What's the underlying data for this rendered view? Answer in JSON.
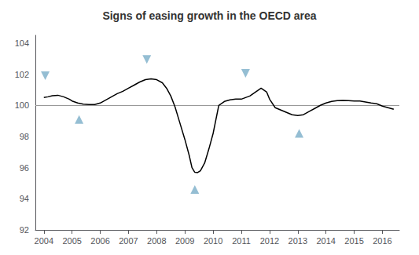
{
  "chart_data": {
    "type": "line",
    "title": "Signs of easing growth in the OECD area",
    "xlim": [
      2003.7,
      2016.6
    ],
    "ylim": [
      92,
      104.5
    ],
    "xticks": [
      2004,
      2005,
      2006,
      2007,
      2008,
      2009,
      2010,
      2011,
      2012,
      2013,
      2014,
      2015,
      2016
    ],
    "yticks": [
      92,
      94,
      96,
      98,
      100,
      102,
      104
    ],
    "grid": false,
    "reference_line": {
      "y": 100,
      "color": "#999999"
    },
    "series": [
      {
        "type": "line",
        "color": "#000000",
        "x": [
          2004.0,
          2004.15,
          2004.3,
          2004.5,
          2004.7,
          2004.9,
          2005.0,
          2005.2,
          2005.4,
          2005.6,
          2005.8,
          2006.0,
          2006.2,
          2006.4,
          2006.6,
          2006.8,
          2007.0,
          2007.2,
          2007.4,
          2007.6,
          2007.8,
          2008.0,
          2008.2,
          2008.35,
          2008.5,
          2008.65,
          2008.8,
          2009.0,
          2009.15,
          2009.25,
          2009.35,
          2009.45,
          2009.55,
          2009.7,
          2009.85,
          2010.0,
          2010.2,
          2010.4,
          2010.6,
          2010.8,
          2011.0,
          2011.15,
          2011.3,
          2011.5,
          2011.7,
          2011.9,
          2012.0,
          2012.2,
          2012.4,
          2012.6,
          2012.8,
          2013.0,
          2013.2,
          2013.4,
          2013.6,
          2013.8,
          2014.0,
          2014.2,
          2014.4,
          2014.6,
          2014.8,
          2015.0,
          2015.2,
          2015.4,
          2015.6,
          2015.8,
          2016.0,
          2016.2,
          2016.4
        ],
        "values": [
          100.5,
          100.55,
          100.62,
          100.65,
          100.55,
          100.4,
          100.28,
          100.15,
          100.08,
          100.05,
          100.05,
          100.15,
          100.35,
          100.55,
          100.75,
          100.9,
          101.1,
          101.3,
          101.5,
          101.65,
          101.7,
          101.65,
          101.45,
          101.1,
          100.6,
          99.9,
          99.0,
          97.8,
          96.8,
          96.0,
          95.7,
          95.68,
          95.8,
          96.3,
          97.2,
          98.2,
          100.0,
          100.25,
          100.35,
          100.4,
          100.4,
          100.5,
          100.6,
          100.85,
          101.1,
          100.85,
          100.4,
          99.85,
          99.7,
          99.55,
          99.4,
          99.35,
          99.4,
          99.6,
          99.8,
          100.0,
          100.15,
          100.25,
          100.3,
          100.32,
          100.3,
          100.28,
          100.28,
          100.22,
          100.15,
          100.1,
          99.95,
          99.85,
          99.75
        ]
      },
      {
        "type": "scatter",
        "marker": "triangle-down",
        "color": "#7AAEC8",
        "x": [
          2004.05,
          2007.65,
          2011.15
        ],
        "values": [
          101.9,
          102.95,
          102.05
        ]
      },
      {
        "type": "scatter",
        "marker": "triangle-up",
        "color": "#7AAEC8",
        "x": [
          2005.25,
          2009.35,
          2013.05
        ],
        "values": [
          99.1,
          94.6,
          98.2
        ]
      }
    ]
  }
}
